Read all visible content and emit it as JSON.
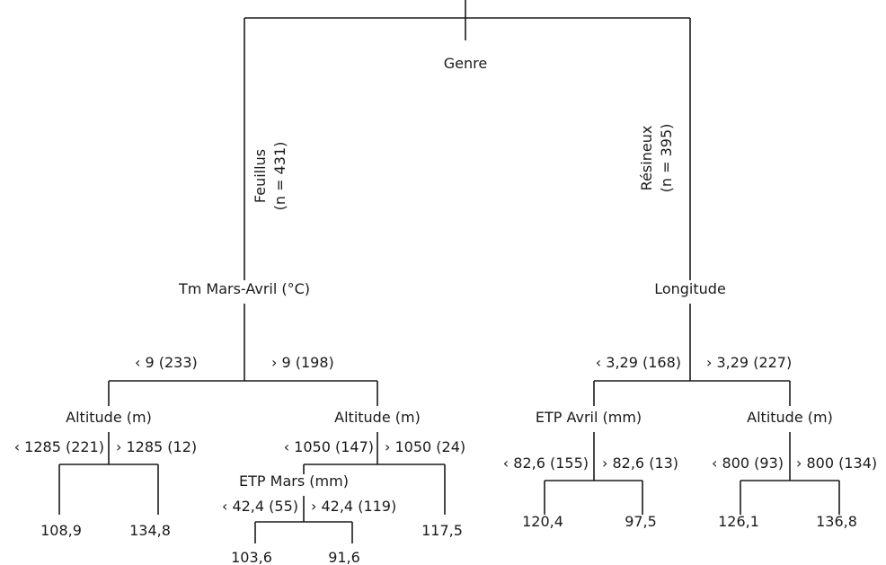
{
  "tree": {
    "root": {
      "label": "Genre"
    },
    "branches": {
      "feuillus": {
        "name": "Feuillus",
        "n": "(n = 431)"
      },
      "resineux": {
        "name": "Résineux",
        "n": "(n = 395)"
      }
    },
    "nodes": {
      "tm_mars_avril": {
        "label": "Tm Mars-Avril (°C)",
        "left": "‹ 9 (233)",
        "right": "› 9 (198)"
      },
      "altitude_a": {
        "label": "Altitude (m)",
        "left": "‹ 1285 (221)",
        "right": "› 1285 (12)"
      },
      "altitude_b": {
        "label": "Altitude (m)",
        "left": "‹ 1050 (147)",
        "right": "› 1050 (24)"
      },
      "etp_mars": {
        "label": "ETP Mars (mm)",
        "left": "‹ 42,4 (55)",
        "right": "› 42,4 (119)"
      },
      "longitude": {
        "label": "Longitude",
        "left": "‹ 3,29 (168)",
        "right": "› 3,29 (227)"
      },
      "etp_avril": {
        "label": "ETP Avril (mm)",
        "left": "‹ 82,6 (155)",
        "right": "› 82,6 (13)"
      },
      "altitude_c": {
        "label": "Altitude (m)",
        "left": "‹ 800 (93)",
        "right": "› 800 (134)"
      }
    },
    "leaves": {
      "l1": "108,9",
      "l2": "134,8",
      "l3": "103,6",
      "l4": "91,6",
      "l5": "117,5",
      "l6": "120,4",
      "l7": "97,5",
      "l8": "126,1",
      "l9": "136,8"
    }
  }
}
